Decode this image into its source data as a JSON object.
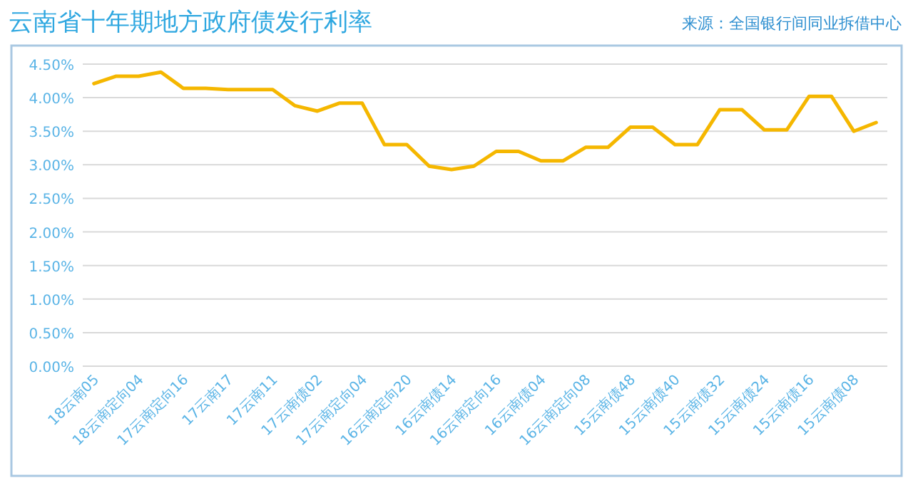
{
  "chart_data": {
    "type": "line",
    "title": "云南省十年期地方政府债发行利率",
    "annotations": [
      "来源：全国银行间同业拆借中心"
    ],
    "categories": [
      "18云南05",
      null,
      "18云南定向04",
      null,
      "17云南定向16",
      null,
      "17云南17",
      null,
      "17云南11",
      null,
      "17云南债02",
      null,
      "17云南定向04",
      null,
      "16云南定向20",
      null,
      "16云南债14",
      null,
      "16云南定向16",
      null,
      "16云南债04",
      null,
      "16云南定向08",
      null,
      "15云南债48",
      null,
      "15云南债40",
      null,
      "15云南债32",
      null,
      "15云南债24",
      null,
      "15云南债16",
      null,
      "15云南债08",
      null
    ],
    "series": [
      {
        "color": "#f5b700",
        "values": [
          4.21,
          4.32,
          4.32,
          4.38,
          4.14,
          4.14,
          4.12,
          4.12,
          4.12,
          3.88,
          3.8,
          3.92,
          3.92,
          3.3,
          3.3,
          2.98,
          2.93,
          2.98,
          3.2,
          3.2,
          3.06,
          3.06,
          3.26,
          3.26,
          3.56,
          3.56,
          3.3,
          3.3,
          3.82,
          3.82,
          3.52,
          3.52,
          4.02,
          4.02,
          3.5,
          3.63
        ]
      }
    ],
    "ylim": [
      0,
      4.5
    ],
    "yticks": [
      {
        "value": 0,
        "label": "0.00%"
      },
      {
        "value": 0.5,
        "label": "0.50%"
      },
      {
        "value": 1,
        "label": "1.00%"
      },
      {
        "value": 1.5,
        "label": "1.50%"
      },
      {
        "value": 2,
        "label": "2.00%"
      },
      {
        "value": 2.5,
        "label": "2.50%"
      },
      {
        "value": 3,
        "label": "3.00%"
      },
      {
        "value": 3.5,
        "label": "3.50%"
      },
      {
        "value": 4,
        "label": "4.00%"
      },
      {
        "value": 4.5,
        "label": "4.50%"
      }
    ],
    "grid": "y"
  }
}
